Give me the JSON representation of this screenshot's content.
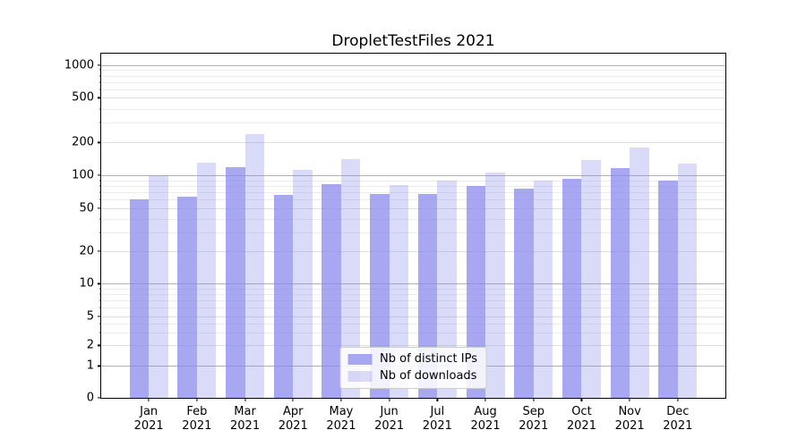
{
  "chart_data": {
    "type": "bar",
    "title": "DropletTestFiles 2021",
    "categories": [
      "Jan",
      "Feb",
      "Mar",
      "Apr",
      "May",
      "Jun",
      "Jul",
      "Aug",
      "Sep",
      "Oct",
      "Nov",
      "Dec"
    ],
    "category_year": "2021",
    "series": [
      {
        "name": "Nb of distinct IPs",
        "color": "rgba(134,134,237,0.73)",
        "values": [
          60,
          64,
          119,
          66,
          83,
          67,
          68,
          80,
          76,
          93,
          116,
          89
        ]
      },
      {
        "name": "Nb of downloads",
        "color": "rgba(134,134,237,0.31)",
        "values": [
          100,
          130,
          237,
          112,
          141,
          81,
          89,
          105,
          89,
          137,
          180,
          128
        ]
      }
    ],
    "xlabel": "",
    "ylabel": "",
    "yscale": "symlog",
    "yticks": [
      0,
      1,
      2,
      5,
      10,
      20,
      50,
      100,
      200,
      500,
      1000
    ],
    "ymajor_ticks": [
      1,
      10,
      100,
      1000
    ],
    "ylim": [
      0,
      1268
    ],
    "grid": true,
    "legend_position": "lower center"
  },
  "colors": {
    "grid_major": "#b0b0b0",
    "grid_minor_labeled": "#dedede",
    "grid_minor_faint": "#ececec",
    "spine": "#000000",
    "background": "#ffffff"
  }
}
